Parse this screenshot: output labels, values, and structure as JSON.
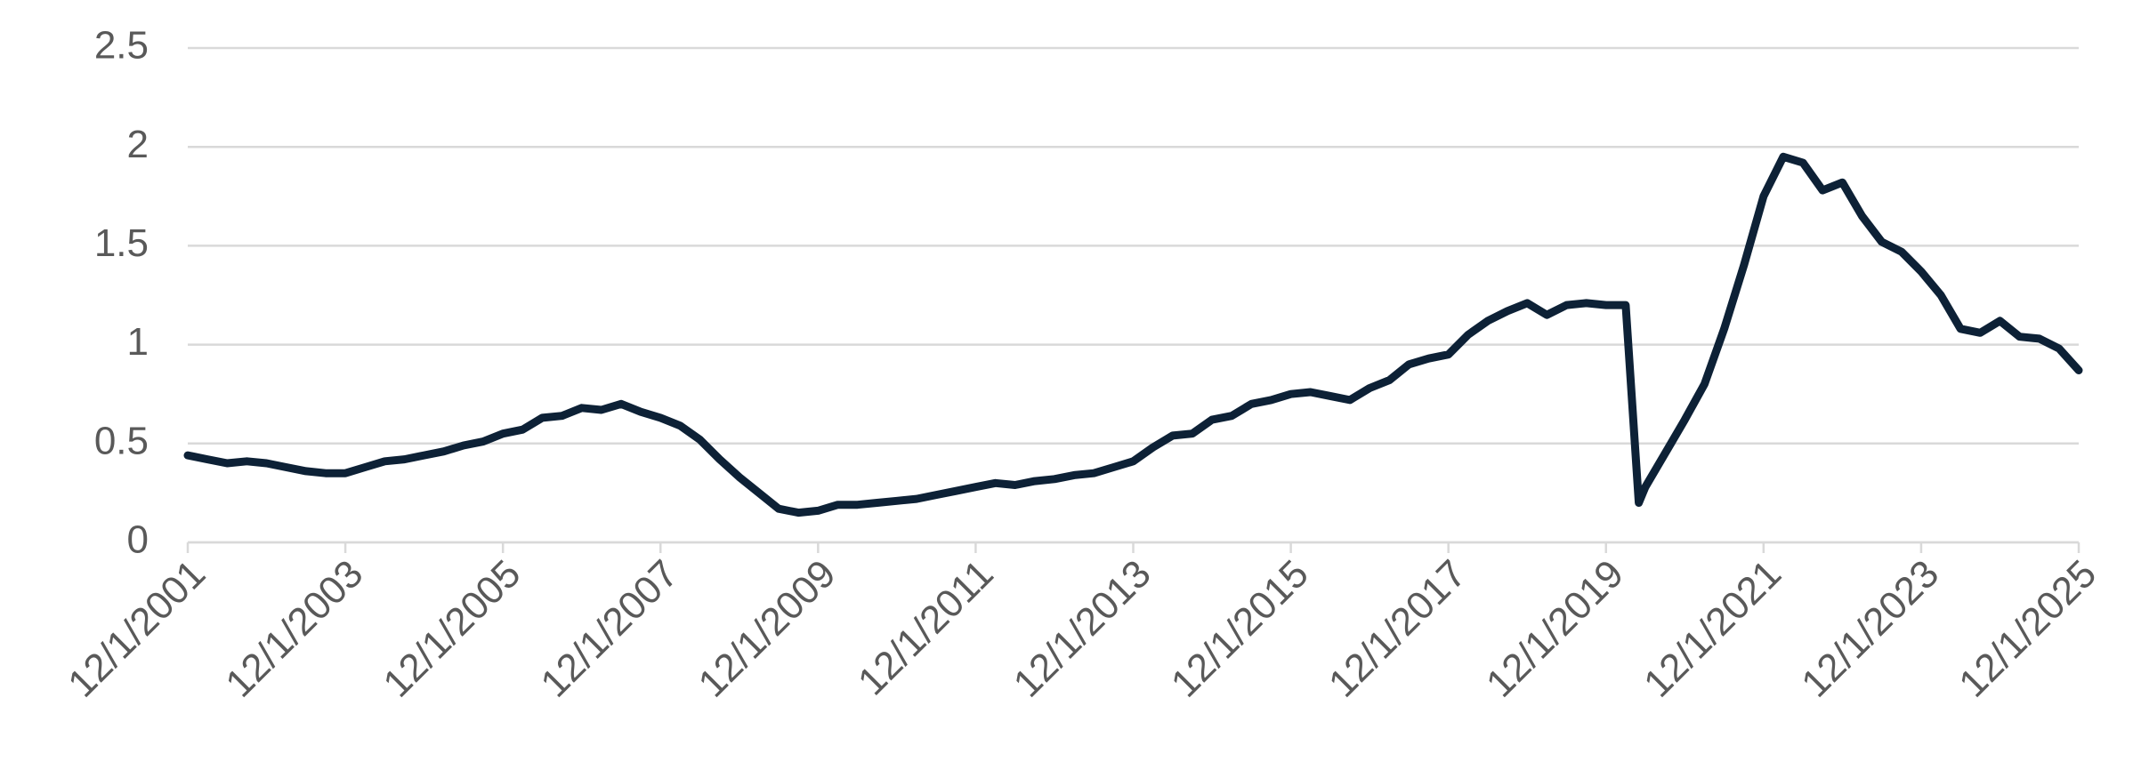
{
  "chart_data": {
    "type": "line",
    "x": [
      "12/1/2001",
      "3/1/2002",
      "6/1/2002",
      "9/1/2002",
      "12/1/2002",
      "3/1/2003",
      "6/1/2003",
      "9/1/2003",
      "12/1/2003",
      "3/1/2004",
      "6/1/2004",
      "9/1/2004",
      "12/1/2004",
      "3/1/2005",
      "6/1/2005",
      "9/1/2005",
      "12/1/2005",
      "3/1/2006",
      "6/1/2006",
      "9/1/2006",
      "12/1/2006",
      "3/1/2007",
      "6/1/2007",
      "9/1/2007",
      "12/1/2007",
      "3/1/2008",
      "6/1/2008",
      "9/1/2008",
      "12/1/2008",
      "3/1/2009",
      "6/1/2009",
      "9/1/2009",
      "12/1/2009",
      "3/1/2010",
      "6/1/2010",
      "9/1/2010",
      "12/1/2010",
      "3/1/2011",
      "6/1/2011",
      "9/1/2011",
      "12/1/2011",
      "3/1/2012",
      "6/1/2012",
      "9/1/2012",
      "12/1/2012",
      "3/1/2013",
      "6/1/2013",
      "9/1/2013",
      "12/1/2013",
      "3/1/2014",
      "6/1/2014",
      "9/1/2014",
      "12/1/2014",
      "3/1/2015",
      "6/1/2015",
      "9/1/2015",
      "12/1/2015",
      "3/1/2016",
      "6/1/2016",
      "9/1/2016",
      "12/1/2016",
      "3/1/2017",
      "6/1/2017",
      "9/1/2017",
      "12/1/2017",
      "3/1/2018",
      "6/1/2018",
      "9/1/2018",
      "12/1/2018",
      "3/1/2019",
      "6/1/2019",
      "9/1/2019",
      "12/1/2019",
      "3/1/2020",
      "5/1/2020",
      "6/1/2020",
      "9/1/2020",
      "12/1/2020",
      "3/1/2021",
      "6/1/2021",
      "9/1/2021",
      "12/1/2021",
      "3/1/2022",
      "6/1/2022",
      "9/1/2022",
      "12/1/2022",
      "3/1/2023",
      "6/1/2023",
      "9/1/2023",
      "12/1/2023",
      "3/1/2024",
      "6/1/2024",
      "9/1/2024",
      "12/1/2024",
      "3/1/2025",
      "6/1/2025",
      "9/1/2025",
      "12/1/2025"
    ],
    "series": [
      {
        "color": "#0d2136",
        "values": [
          0.44,
          0.42,
          0.4,
          0.41,
          0.4,
          0.38,
          0.36,
          0.35,
          0.35,
          0.38,
          0.41,
          0.42,
          0.44,
          0.46,
          0.49,
          0.51,
          0.55,
          0.57,
          0.63,
          0.64,
          0.68,
          0.67,
          0.7,
          0.66,
          0.63,
          0.59,
          0.52,
          0.42,
          0.33,
          0.25,
          0.17,
          0.15,
          0.16,
          0.19,
          0.19,
          0.2,
          0.21,
          0.22,
          0.24,
          0.26,
          0.28,
          0.3,
          0.29,
          0.31,
          0.32,
          0.34,
          0.35,
          0.38,
          0.41,
          0.48,
          0.54,
          0.55,
          0.62,
          0.64,
          0.7,
          0.72,
          0.75,
          0.76,
          0.74,
          0.72,
          0.78,
          0.82,
          0.9,
          0.93,
          0.95,
          1.05,
          1.12,
          1.17,
          1.21,
          1.15,
          1.2,
          1.21,
          1.2,
          1.2,
          0.2,
          0.28,
          0.45,
          0.62,
          0.8,
          1.08,
          1.4,
          1.75,
          1.95,
          1.92,
          1.78,
          1.82,
          1.65,
          1.52,
          1.47,
          1.37,
          1.25,
          1.08,
          1.06,
          1.12,
          1.04,
          1.03,
          0.98,
          0.87
        ]
      }
    ],
    "xlim": [
      "12/1/2001",
      "12/1/2025"
    ],
    "xticks": [
      "12/1/2001",
      "12/1/2003",
      "12/1/2005",
      "12/1/2007",
      "12/1/2009",
      "12/1/2011",
      "12/1/2013",
      "12/1/2015",
      "12/1/2017",
      "12/1/2019",
      "12/1/2021",
      "12/1/2023",
      "12/1/2025"
    ],
    "ylim": [
      0,
      2.5
    ],
    "yticks": [
      0,
      0.5,
      1,
      1.5,
      2,
      2.5
    ],
    "grid": true
  }
}
